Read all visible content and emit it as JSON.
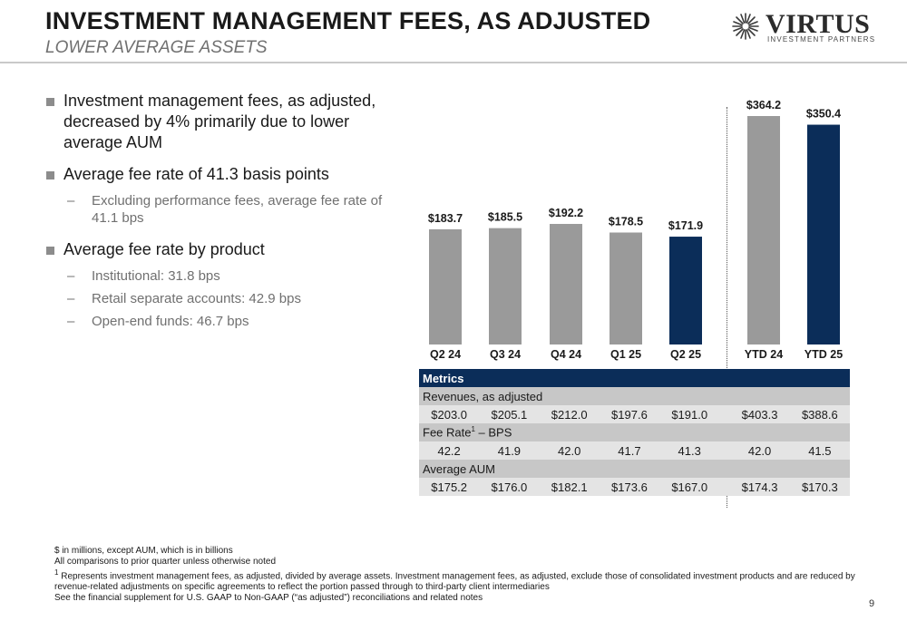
{
  "header": {
    "title": "INVESTMENT MANAGEMENT FEES, AS ADJUSTED",
    "subtitle": "LOWER AVERAGE ASSETS",
    "logo_word": "VIRTUS",
    "logo_tag": "INVESTMENT PARTNERS"
  },
  "bullets": [
    {
      "text": "Investment management fees, as adjusted, decreased by 4% primarily due to lower average AUM",
      "subs": []
    },
    {
      "text": "Average fee rate of 41.3 basis points",
      "subs": [
        "Excluding performance fees, average fee rate of 41.1 bps"
      ]
    },
    {
      "text": "Average fee rate by product",
      "subs": [
        "Institutional: 31.8 bps",
        "Retail separate accounts: 42.9 bps",
        "Open-end funds: 46.7 bps"
      ]
    }
  ],
  "chart_data": {
    "type": "bar",
    "title": "",
    "xlabel": "",
    "ylabel": "",
    "categories": [
      "Q2 24",
      "Q3 24",
      "Q4 24",
      "Q1 25",
      "Q2 25",
      "YTD 24",
      "YTD 25"
    ],
    "values": [
      183.7,
      185.5,
      192.2,
      178.5,
      171.9,
      364.2,
      350.4
    ],
    "data_labels": [
      "$183.7",
      "$185.5",
      "$192.2",
      "$178.5",
      "$171.9",
      "$364.2",
      "$350.4"
    ],
    "bar_colors": [
      "#9a9a9a",
      "#9a9a9a",
      "#9a9a9a",
      "#9a9a9a",
      "#0b2d59",
      "#9a9a9a",
      "#0b2d59"
    ],
    "ylim": [
      0,
      364.2
    ],
    "grid": false,
    "legend": "none"
  },
  "metrics": {
    "header": "Metrics",
    "rows": [
      {
        "label": "Revenues, as adjusted",
        "values": [
          "$203.0",
          "$205.1",
          "$212.0",
          "$197.6",
          "$191.0",
          "$403.3",
          "$388.6"
        ]
      },
      {
        "label": "Fee Rate",
        "label_sup": "1",
        "label_suffix": " – BPS",
        "values": [
          "42.2",
          "41.9",
          "42.0",
          "41.7",
          "41.3",
          "42.0",
          "41.5"
        ]
      },
      {
        "label": "Average AUM",
        "values": [
          "$175.2",
          "$176.0",
          "$182.1",
          "$173.6",
          "$167.0",
          "$174.3",
          "$170.3"
        ]
      }
    ]
  },
  "footnotes": {
    "line1": "$ in millions, except AUM, which is in billions",
    "line2": "All comparisons to prior quarter unless otherwise noted",
    "line3_sup": "1",
    "line3": " Represents investment management fees, as adjusted, divided by average assets. Investment management fees, as adjusted, exclude those of consolidated investment products and are reduced by revenue-related adjustments on specific agreements to reflect the portion passed through to third-party client intermediaries",
    "line4": "See the financial supplement for U.S. GAAP to Non-GAAP (“as adjusted”) reconciliations and related notes"
  },
  "page_number": "9",
  "colors": {
    "navy": "#0b2d59",
    "gray_bar": "#9a9a9a"
  }
}
